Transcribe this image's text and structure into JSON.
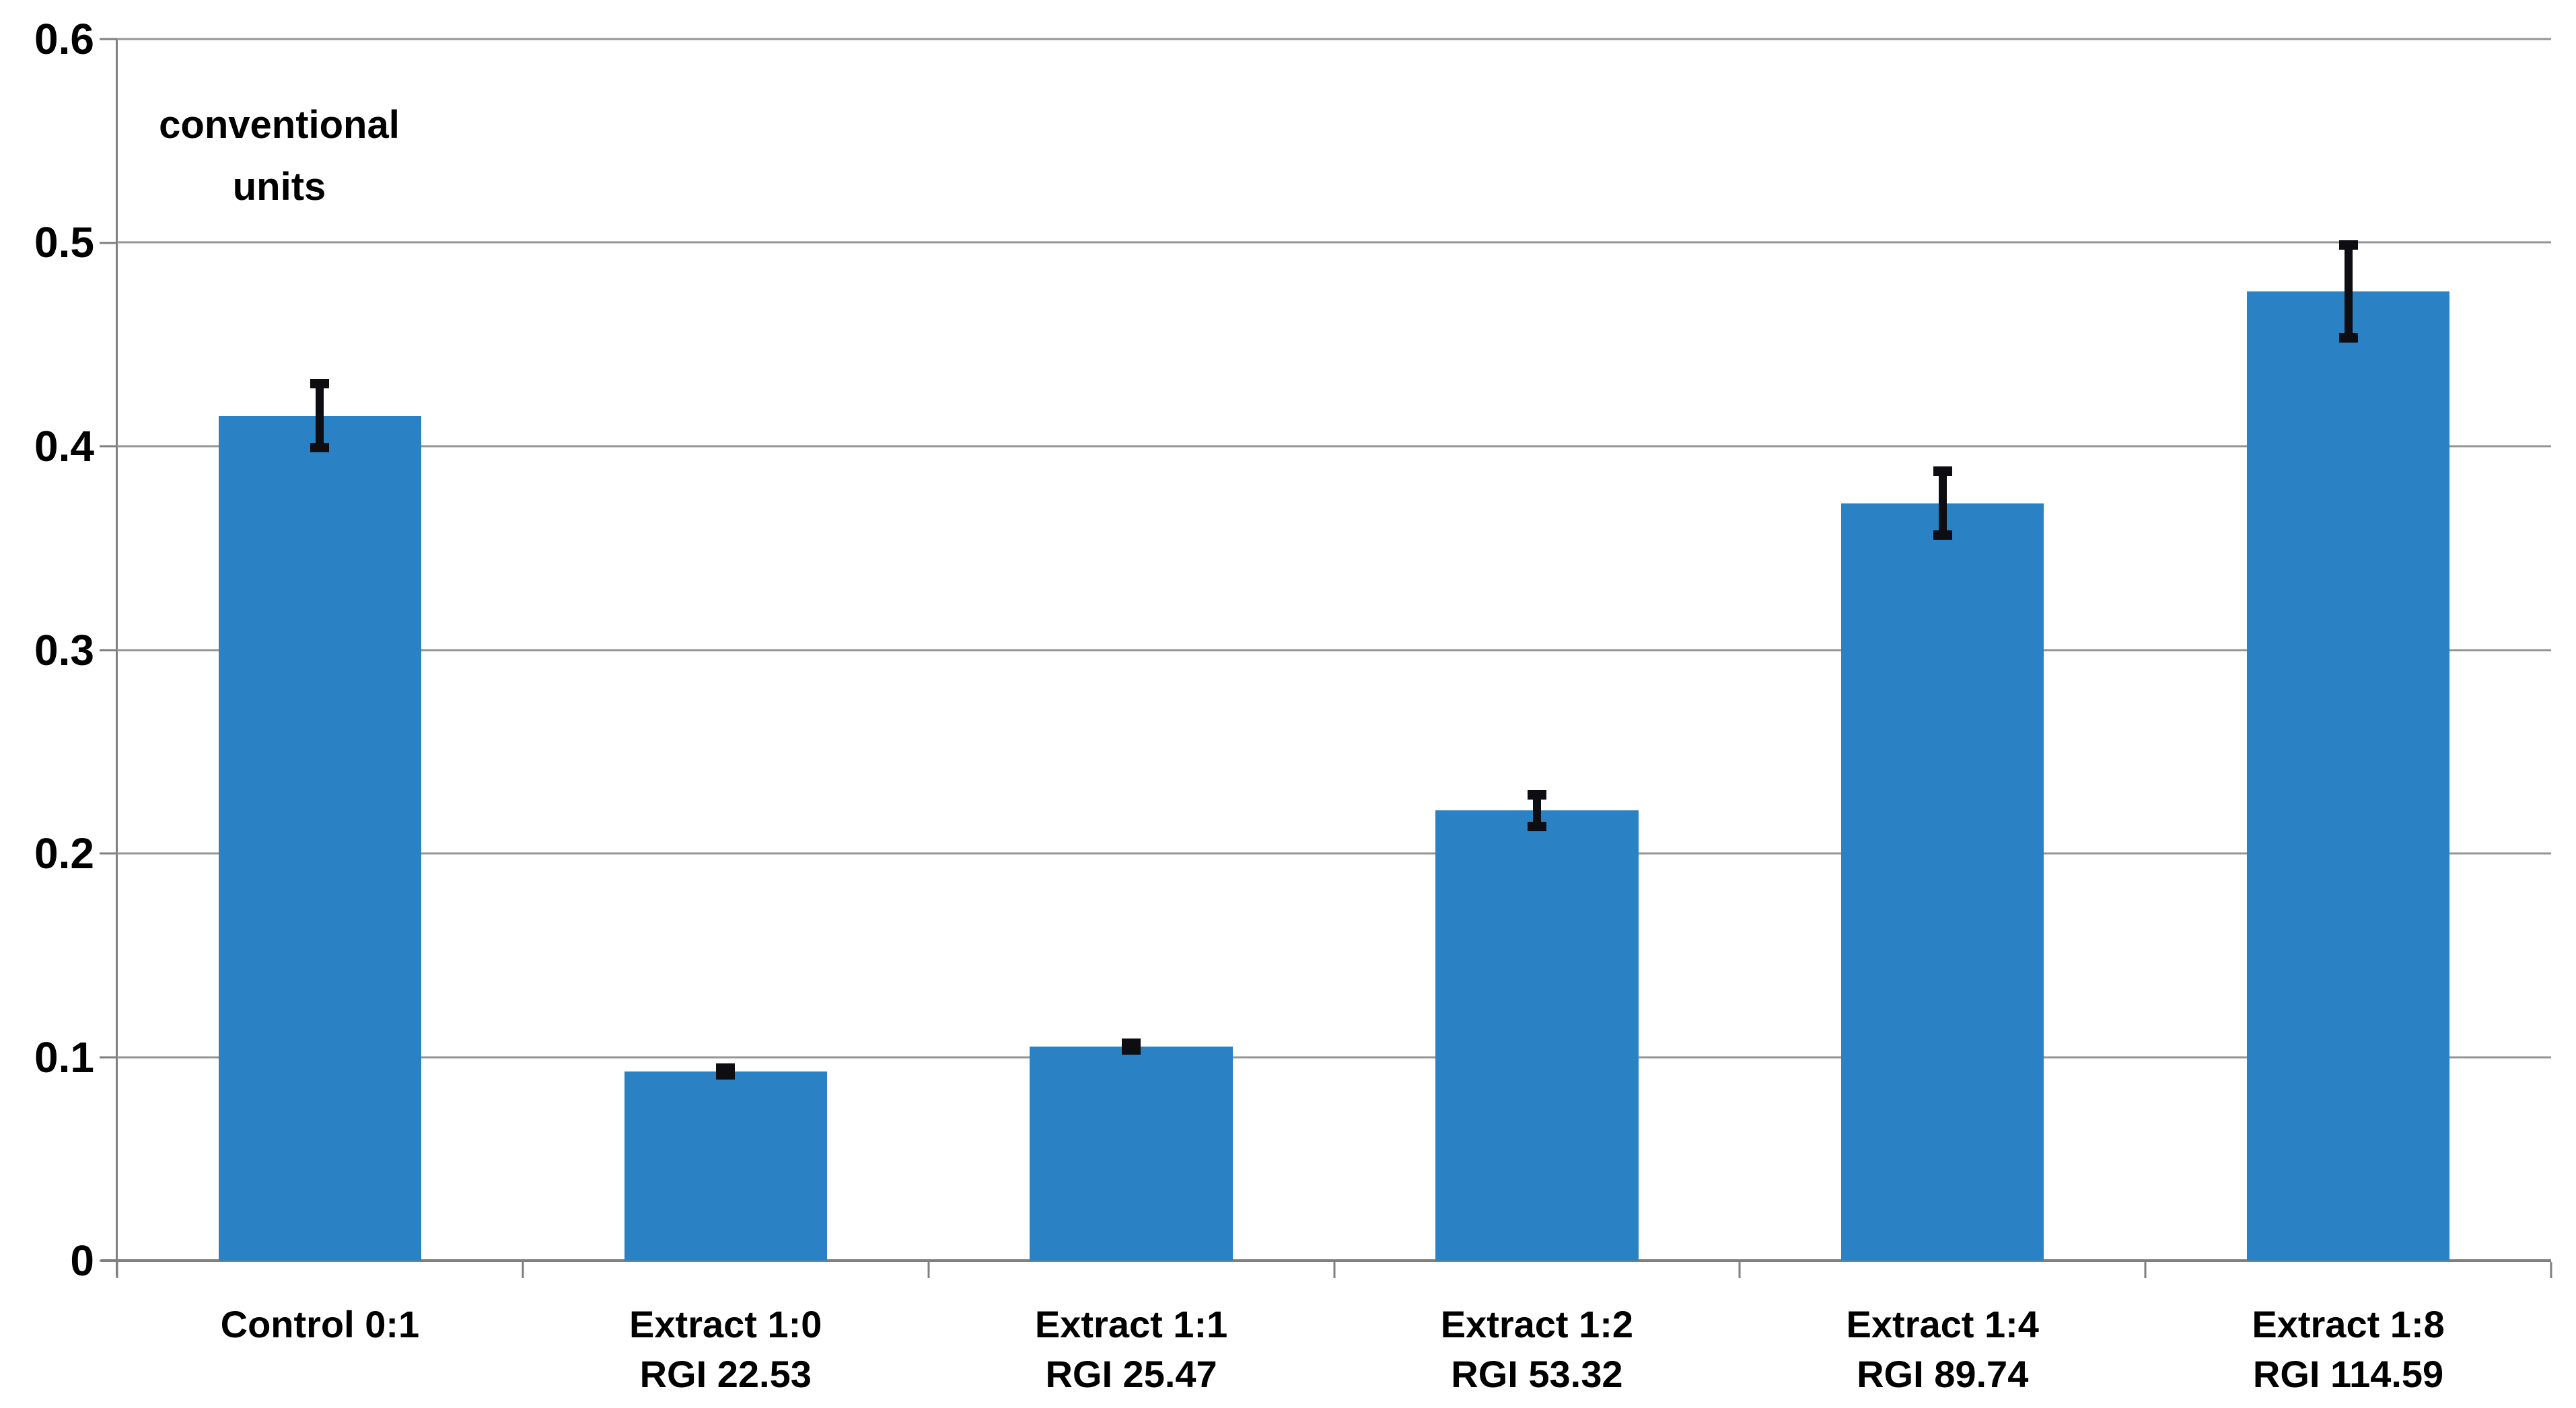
{
  "chart_data": {
    "type": "bar",
    "title": "",
    "unit_label_line1": "conventional",
    "unit_label_line2": "units",
    "categories": [
      {
        "line1": "Control 0:1",
        "line2": ""
      },
      {
        "line1": "Extract 1:0",
        "line2": "RGI 22.53"
      },
      {
        "line1": "Extract 1:1",
        "line2": "RGI 25.47"
      },
      {
        "line1": "Extract 1:2",
        "line2": "RGI 53.32"
      },
      {
        "line1": "Extract 1:4",
        "line2": "RGI 89.74"
      },
      {
        "line1": "Extract 1:8",
        "line2": "RGI 114.59"
      }
    ],
    "values": [
      0.415,
      0.093,
      0.105,
      0.221,
      0.372,
      0.476
    ],
    "errors": [
      0.018,
      0.004,
      0.004,
      0.01,
      0.018,
      0.025
    ],
    "ylim": [
      0,
      0.6
    ],
    "ytick_step": 0.1,
    "ytick_labels": [
      "0",
      "0.1",
      "0.2",
      "0.3",
      "0.4",
      "0.5",
      "0.6"
    ],
    "grid": true,
    "legend": "none",
    "xlabel": "",
    "ylabel": "conventional units"
  },
  "colors": {
    "background": "#FFFFFF",
    "bar": "#2A82C5",
    "gridline": "#949494",
    "axis": "#7F7F7F",
    "error_bar": "#0D0D12",
    "text": "#000000"
  }
}
